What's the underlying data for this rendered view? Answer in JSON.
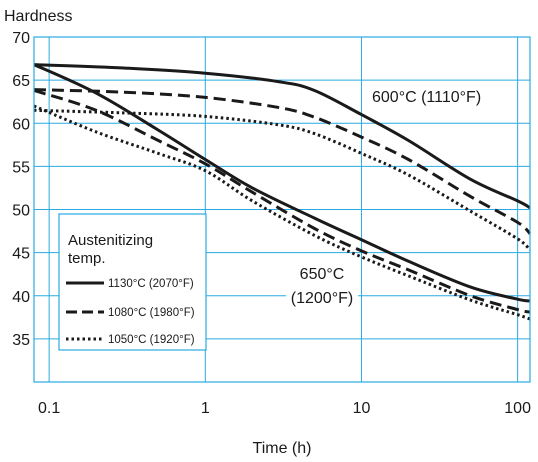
{
  "chart_data": {
    "type": "line",
    "title": "",
    "ylabel": "Hardness",
    "xlabel": "Time (h)",
    "x_scale": "log",
    "xlim": [
      0.08,
      120
    ],
    "ylim": [
      30,
      70
    ],
    "grid": true,
    "x_ticks": [
      0.1,
      1,
      10,
      100
    ],
    "x_tick_labels": [
      "0.1",
      "1",
      "10",
      "100"
    ],
    "y_ticks": [
      35,
      40,
      45,
      50,
      55,
      60,
      65,
      70
    ],
    "y_tick_labels": [
      "35",
      "40",
      "45",
      "50",
      "55",
      "60",
      "65",
      "70"
    ],
    "legend": {
      "title_lines": [
        "Austenitizing",
        "temp."
      ],
      "placement": "lower-left",
      "entries": [
        {
          "label": "1130°C (2070°F)",
          "style": "solid"
        },
        {
          "label": "1080°C (1980°F)",
          "style": "dashed"
        },
        {
          "label": "1050°C (1920°F)",
          "style": "dotted"
        }
      ]
    },
    "annotations": [
      {
        "text": "600°C (1110°F)",
        "group": "600"
      },
      {
        "text": "650°C",
        "group": "650"
      },
      {
        "text": "(1200°F)",
        "group": "650"
      }
    ],
    "series": [
      {
        "group": "600",
        "style": "solid",
        "x": [
          0.08,
          0.3,
          1,
          3,
          5,
          10,
          20,
          50,
          100,
          120
        ],
        "y": [
          66.8,
          66.4,
          65.8,
          64.8,
          63.8,
          61.0,
          58.0,
          53.5,
          51.0,
          50.2
        ]
      },
      {
        "group": "600",
        "style": "dashed",
        "x": [
          0.08,
          0.3,
          1,
          3,
          5,
          10,
          20,
          50,
          100,
          120
        ],
        "y": [
          63.9,
          63.6,
          63.0,
          61.8,
          60.7,
          58.4,
          55.8,
          51.5,
          48.5,
          47.2
        ]
      },
      {
        "group": "600",
        "style": "dotted",
        "x": [
          0.08,
          0.3,
          1,
          3,
          5,
          10,
          20,
          50,
          100,
          120
        ],
        "y": [
          61.5,
          61.2,
          60.8,
          59.8,
          58.8,
          56.5,
          54.0,
          49.8,
          46.6,
          45.3
        ]
      },
      {
        "group": "650",
        "style": "solid",
        "x": [
          0.08,
          0.2,
          0.5,
          1,
          2,
          5,
          10,
          20,
          50,
          100,
          120
        ],
        "y": [
          66.8,
          63.5,
          59.2,
          55.8,
          52.5,
          49.0,
          46.5,
          44.0,
          41.0,
          39.6,
          39.4
        ]
      },
      {
        "group": "650",
        "style": "dashed",
        "x": [
          0.08,
          0.2,
          0.5,
          1,
          2,
          5,
          10,
          20,
          50,
          100,
          120
        ],
        "y": [
          63.8,
          61.5,
          58.0,
          55.3,
          52.0,
          47.8,
          45.2,
          43.0,
          40.0,
          38.4,
          38.1
        ]
      },
      {
        "group": "650",
        "style": "dotted",
        "x": [
          0.08,
          0.2,
          0.5,
          1,
          2,
          5,
          10,
          20,
          50,
          100,
          120
        ],
        "y": [
          62.0,
          59.0,
          56.5,
          54.5,
          51.0,
          47.0,
          44.5,
          42.3,
          39.5,
          37.8,
          37.3
        ]
      }
    ]
  }
}
